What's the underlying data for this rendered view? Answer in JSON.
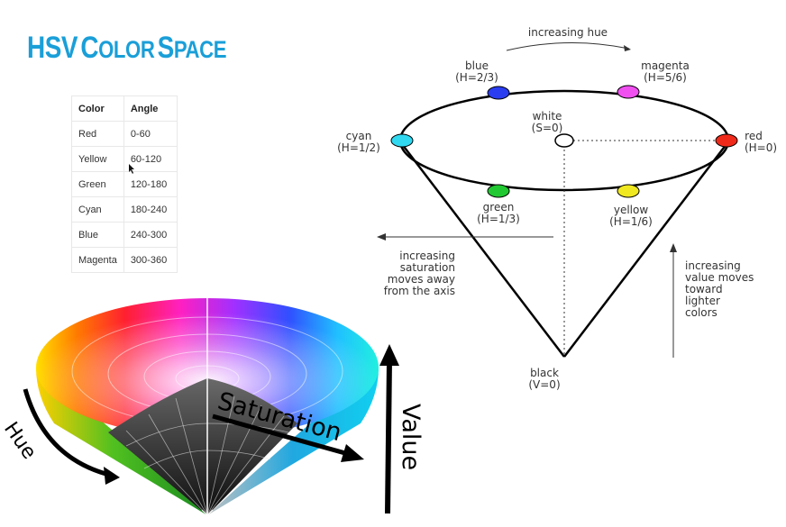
{
  "title": {
    "part1_cap": "HSV",
    "part2_cap": "C",
    "part2_rest": "OLOR",
    "part3_cap": "S",
    "part3_rest": "PACE"
  },
  "table": {
    "headers": [
      "Color",
      "Angle"
    ],
    "rows": [
      [
        "Red",
        "0-60"
      ],
      [
        "Yellow",
        "60-120"
      ],
      [
        "Green",
        "120-180"
      ],
      [
        "Cyan",
        "180-240"
      ],
      [
        "Blue",
        "240-300"
      ],
      [
        "Magenta",
        "300-360"
      ]
    ]
  },
  "cone_labels": {
    "hue": "Hue",
    "saturation": "Saturation",
    "value": "Value"
  },
  "diagram": {
    "increasing_hue": "increasing hue",
    "points": {
      "blue": {
        "name": "blue",
        "value": "(H=2/3)",
        "color": "#2a3df0"
      },
      "magenta": {
        "name": "magenta",
        "value": "(H=5/6)",
        "color": "#f050f0"
      },
      "cyan": {
        "name": "cyan",
        "value": "(H=1/2)",
        "color": "#30d8f0"
      },
      "white": {
        "name": "white",
        "value": "(S=0)",
        "color": "#ffffff"
      },
      "red": {
        "name": "red",
        "value": "(H=0)",
        "color": "#f02a1a"
      },
      "green": {
        "name": "green",
        "value": "(H=1/3)",
        "color": "#22c832"
      },
      "yellow": {
        "name": "yellow",
        "value": "(H=1/6)",
        "color": "#f0e820"
      },
      "black": {
        "name": "black",
        "value": "(V=0)",
        "color": "#000000"
      }
    },
    "saturation_note": [
      "increasing",
      "saturation",
      "moves away",
      "from the axis"
    ],
    "value_note": [
      "increasing",
      "value moves",
      "toward",
      "lighter",
      "colors"
    ]
  }
}
